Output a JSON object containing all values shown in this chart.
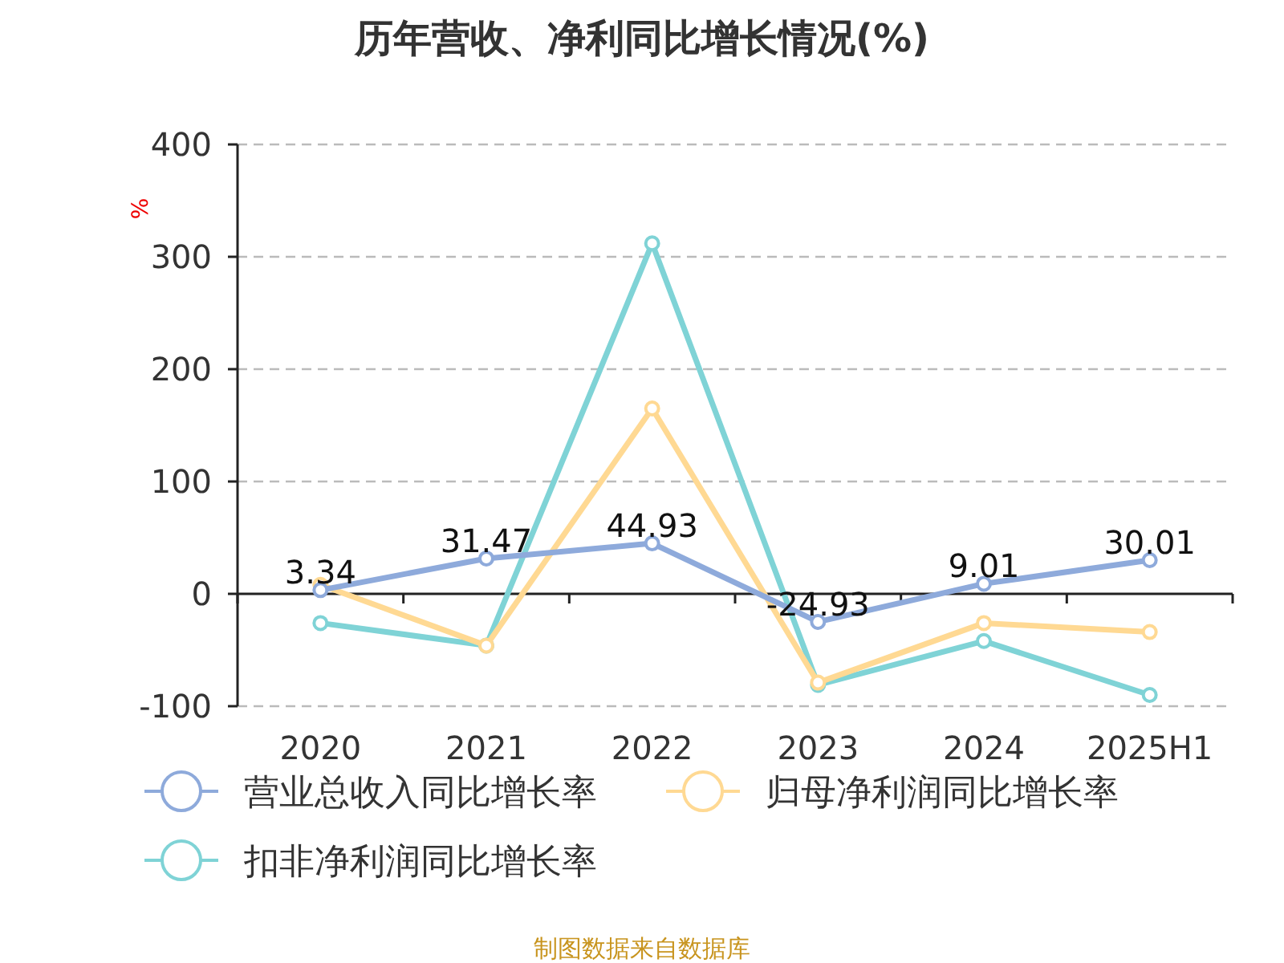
{
  "chart_data": {
    "type": "line",
    "title": "历年营收、净利同比增长情况(%)",
    "ylabel": "%",
    "categories": [
      "2020",
      "2021",
      "2022",
      "2023",
      "2024",
      "2025H1"
    ],
    "series": [
      {
        "name": "营业总收入同比增长率",
        "color": "#8eaadb",
        "values": [
          3.34,
          31.47,
          44.93,
          -24.93,
          9.01,
          30.01
        ],
        "value_labels": [
          "3.34",
          "31.47",
          "44.93",
          "-24.93",
          "9.01",
          "30.01"
        ]
      },
      {
        "name": "归母净利润同比增长率",
        "color": "#ffd993",
        "values": [
          8,
          -46,
          165,
          -79,
          -26,
          -34
        ]
      },
      {
        "name": "扣非净利润同比增长率",
        "color": "#7fd3d6",
        "values": [
          -26,
          -46,
          312,
          -81,
          -42,
          -90
        ]
      }
    ],
    "ylim": [
      -100,
      400
    ],
    "yticks": [
      -100,
      0,
      100,
      200,
      300,
      400
    ],
    "grid": "y",
    "legend": "bottom",
    "marker": "circle",
    "line_style": "solid",
    "annotations": [
      "制图数据来自数据库"
    ]
  }
}
